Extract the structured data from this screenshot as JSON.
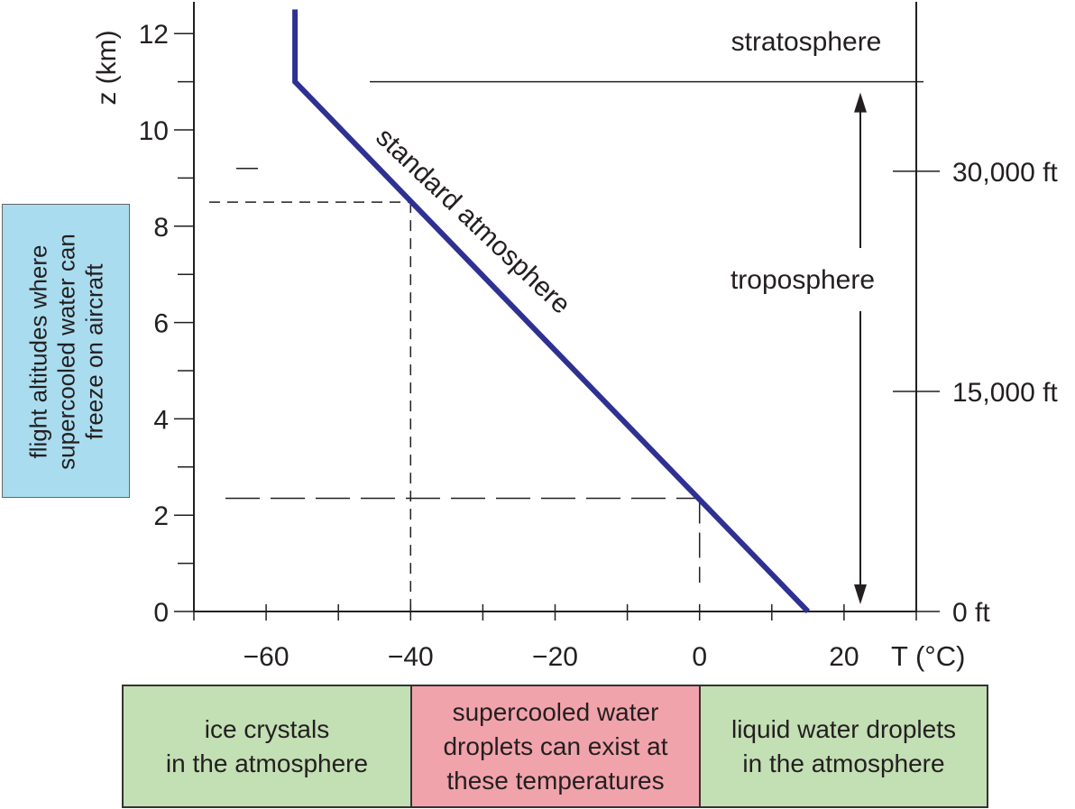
{
  "chart_data": {
    "type": "line",
    "series": [
      {
        "name": "standard atmosphere",
        "x": [
          -56,
          -56,
          15
        ],
        "y": [
          12.5,
          11,
          0
        ],
        "color": "#2e3192"
      }
    ],
    "xlabel": "T (°C)",
    "ylabel": "z (km)",
    "xlim": [
      -70,
      30
    ],
    "ylim": [
      0,
      12.5
    ],
    "x_ticks": [
      -60,
      -40,
      -20,
      0,
      20
    ],
    "x_tick_labels": [
      "−60",
      "−40",
      "−20",
      "0",
      "20"
    ],
    "y_ticks": [
      0,
      2,
      4,
      6,
      8,
      10,
      12
    ],
    "y_tick_labels": [
      "0",
      "2",
      "4",
      "6",
      "8",
      "10",
      "12"
    ],
    "right_axis_ticks": [
      {
        "label": "0 ft",
        "km": 0
      },
      {
        "label": "15,000 ft",
        "km": 4.57
      },
      {
        "label": "30,000 ft",
        "km": 9.14
      }
    ],
    "tropopause_km": 11,
    "dashed_guides": [
      {
        "temp": -40,
        "alt_km": 8.5
      },
      {
        "temp": 0,
        "alt_km": 2.35
      }
    ],
    "annotations": {
      "curve": "standard atmosphere",
      "stratosphere": "stratosphere",
      "troposphere": "troposphere"
    },
    "grid": false
  },
  "side_box": {
    "text": "flight altitudes where supercooled water can freeze on aircraft",
    "color": "#a9dcef"
  },
  "bands": [
    {
      "text": "ice crystals\nin the atmosphere",
      "color": "#c3dfb4"
    },
    {
      "text": "supercooled water\ndroplets can exist at\nthese temperatures",
      "color": "#f1a3ab"
    },
    {
      "text": "liquid water droplets\nin the atmosphere",
      "color": "#c3dfb4"
    }
  ]
}
